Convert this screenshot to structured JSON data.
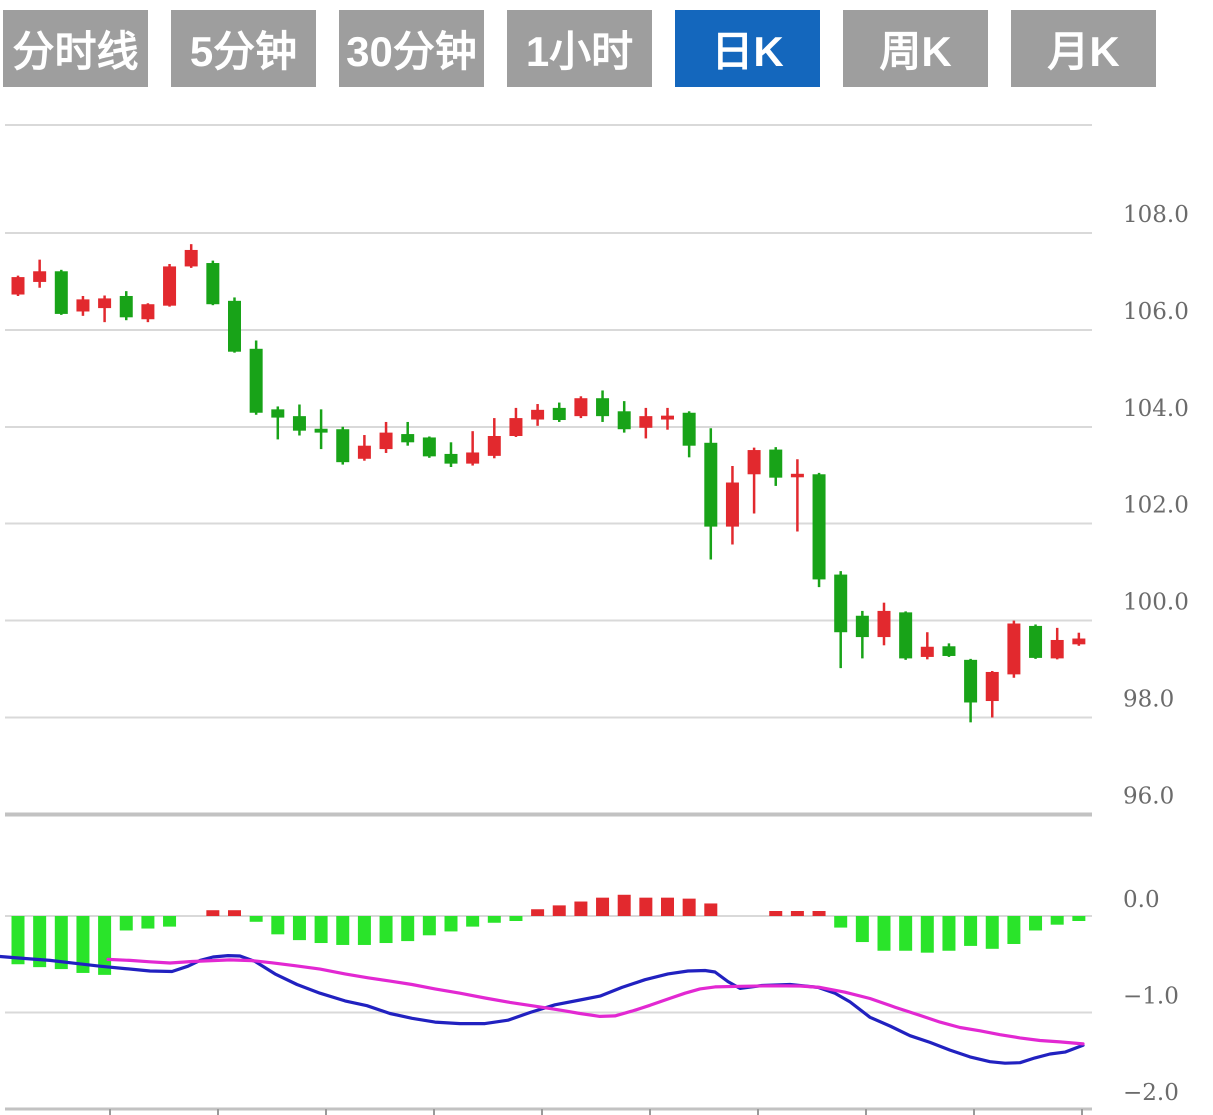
{
  "toolbar": {
    "buttons": [
      {
        "label": "分时线",
        "name": "tab-minute-line",
        "active": false
      },
      {
        "label": "5分钟",
        "name": "tab-5min",
        "active": false
      },
      {
        "label": "30分钟",
        "name": "tab-30min",
        "active": false
      },
      {
        "label": "1小时",
        "name": "tab-1hour",
        "active": false
      },
      {
        "label": "日K",
        "name": "tab-daily-k",
        "active": true
      },
      {
        "label": "周K",
        "name": "tab-weekly-k",
        "active": false
      },
      {
        "label": "月K",
        "name": "tab-monthly-k",
        "active": false
      }
    ]
  },
  "colors": {
    "button_gray": "#9e9e9e",
    "button_active_blue": "#1467bd",
    "button_text": "#ffffff",
    "candle_up_red": "#e2292e",
    "candle_down_green": "#18a318",
    "hist_green": "#2ae42a",
    "hist_red": "#e2292e",
    "dif_line_blue": "#2121c0",
    "dea_line_magenta": "#e228d2",
    "grid": "#d9d9d9",
    "grid_strong": "#c2c2c2",
    "axis_text": "#6b6b6b",
    "background": "#ffffff"
  },
  "chart_data": {
    "type": "candlestick",
    "title": "",
    "panes": [
      "price",
      "macd"
    ],
    "grid": true,
    "legend_position": "none",
    "price_axis": {
      "range": [
        95.5,
        110.2
      ],
      "ticks": [
        {
          "label": "108.0",
          "value": 108
        },
        {
          "label": "106.0",
          "value": 106
        },
        {
          "label": "104.0",
          "value": 104
        },
        {
          "label": "102.0",
          "value": 102
        },
        {
          "label": "100.0",
          "value": 100
        },
        {
          "label": "98.0",
          "value": 98
        },
        {
          "label": "96.0",
          "value": 96
        }
      ]
    },
    "macd_axis": {
      "range": [
        -2.0,
        0.3
      ],
      "ticks": [
        {
          "label": "0.0",
          "value": 0
        },
        {
          "label": "−1.0",
          "value": -1
        },
        {
          "label": "−2.0",
          "value": -2
        }
      ]
    },
    "candles_format": [
      "open",
      "high",
      "low",
      "close"
    ],
    "candles": [
      [
        106.73,
        107.12,
        106.7,
        107.09
      ],
      [
        106.99,
        107.45,
        106.87,
        107.21
      ],
      [
        107.21,
        107.24,
        106.31,
        106.33
      ],
      [
        106.38,
        106.7,
        106.29,
        106.63
      ],
      [
        106.45,
        106.71,
        106.16,
        106.65
      ],
      [
        106.7,
        106.8,
        106.2,
        106.26
      ],
      [
        106.22,
        106.55,
        106.16,
        106.53
      ],
      [
        106.5,
        107.36,
        106.48,
        107.31
      ],
      [
        107.31,
        107.77,
        107.28,
        107.65
      ],
      [
        107.38,
        107.43,
        106.51,
        106.53
      ],
      [
        106.6,
        106.67,
        105.53,
        105.55
      ],
      [
        105.61,
        105.78,
        104.25,
        104.29
      ],
      [
        104.36,
        104.42,
        103.74,
        104.19
      ],
      [
        104.22,
        104.46,
        103.82,
        103.92
      ],
      [
        103.96,
        104.36,
        103.54,
        103.88
      ],
      [
        103.95,
        104.0,
        103.22,
        103.27
      ],
      [
        103.34,
        103.83,
        103.3,
        103.61
      ],
      [
        103.54,
        104.1,
        103.46,
        103.88
      ],
      [
        103.85,
        104.1,
        103.61,
        103.68
      ],
      [
        103.78,
        103.8,
        103.36,
        103.39
      ],
      [
        103.44,
        103.68,
        103.17,
        103.24
      ],
      [
        103.24,
        103.91,
        103.2,
        103.47
      ],
      [
        103.4,
        104.18,
        103.35,
        103.81
      ],
      [
        103.81,
        104.39,
        103.79,
        104.18
      ],
      [
        104.15,
        104.47,
        104.02,
        104.35
      ],
      [
        104.39,
        104.5,
        104.1,
        104.14
      ],
      [
        104.22,
        104.63,
        104.18,
        104.59
      ],
      [
        104.59,
        104.75,
        104.1,
        104.22
      ],
      [
        104.32,
        104.53,
        103.88,
        103.95
      ],
      [
        103.98,
        104.39,
        103.76,
        104.22
      ],
      [
        104.15,
        104.39,
        103.94,
        104.23
      ],
      [
        104.29,
        104.32,
        103.37,
        103.61
      ],
      [
        103.67,
        103.97,
        101.26,
        101.94
      ],
      [
        101.94,
        103.19,
        101.57,
        102.85
      ],
      [
        103.02,
        103.57,
        102.21,
        103.52
      ],
      [
        103.53,
        103.58,
        102.78,
        102.95
      ],
      [
        102.99,
        103.33,
        101.84,
        103.03
      ],
      [
        103.02,
        103.05,
        100.69,
        100.85
      ],
      [
        100.95,
        101.02,
        99.02,
        99.76
      ],
      [
        100.1,
        100.2,
        99.22,
        99.66
      ],
      [
        99.66,
        100.37,
        99.49,
        100.2
      ],
      [
        100.17,
        100.19,
        99.19,
        99.22
      ],
      [
        99.25,
        99.76,
        99.2,
        99.46
      ],
      [
        99.47,
        99.53,
        99.25,
        99.27
      ],
      [
        99.19,
        99.21,
        97.9,
        98.31
      ],
      [
        98.34,
        98.96,
        98.0,
        98.94
      ],
      [
        98.89,
        100.0,
        98.82,
        99.94
      ],
      [
        99.89,
        99.92,
        99.21,
        99.23
      ],
      [
        99.22,
        99.85,
        99.2,
        99.6
      ],
      [
        99.51,
        99.75,
        99.48,
        99.63
      ]
    ],
    "macd_histogram": [
      -0.5,
      -0.53,
      -0.55,
      -0.59,
      -0.61,
      -0.15,
      -0.13,
      -0.11,
      0.0,
      0.06,
      0.06,
      -0.06,
      -0.19,
      -0.25,
      -0.28,
      -0.3,
      -0.3,
      -0.28,
      -0.26,
      -0.2,
      -0.16,
      -0.11,
      -0.07,
      -0.03,
      0.07,
      0.11,
      0.15,
      0.19,
      0.22,
      0.19,
      0.19,
      0.18,
      0.13,
      0.0,
      0.0,
      0.02,
      0.02,
      0.02,
      -0.12,
      -0.27,
      -0.36,
      -0.36,
      -0.38,
      -0.36,
      -0.31,
      -0.34,
      -0.29,
      -0.15,
      -0.09,
      -0.03
    ],
    "dif_line": [
      [
        0,
        -0.42
      ],
      [
        25,
        -0.44
      ],
      [
        50,
        -0.46
      ],
      [
        75,
        -0.49
      ],
      [
        100,
        -0.52
      ],
      [
        125,
        -0.545
      ],
      [
        150,
        -0.57
      ],
      [
        172,
        -0.575
      ],
      [
        188,
        -0.52
      ],
      [
        200,
        -0.46
      ],
      [
        213,
        -0.425
      ],
      [
        228,
        -0.41
      ],
      [
        240,
        -0.415
      ],
      [
        255,
        -0.47
      ],
      [
        275,
        -0.6
      ],
      [
        297,
        -0.71
      ],
      [
        320,
        -0.8
      ],
      [
        345,
        -0.88
      ],
      [
        367,
        -0.93
      ],
      [
        390,
        -1.01
      ],
      [
        412,
        -1.06
      ],
      [
        435,
        -1.1
      ],
      [
        460,
        -1.115
      ],
      [
        485,
        -1.115
      ],
      [
        508,
        -1.08
      ],
      [
        530,
        -1.0
      ],
      [
        555,
        -0.92
      ],
      [
        580,
        -0.87
      ],
      [
        600,
        -0.83
      ],
      [
        622,
        -0.74
      ],
      [
        645,
        -0.66
      ],
      [
        668,
        -0.6
      ],
      [
        688,
        -0.57
      ],
      [
        705,
        -0.565
      ],
      [
        715,
        -0.58
      ],
      [
        728,
        -0.68
      ],
      [
        740,
        -0.75
      ],
      [
        762,
        -0.72
      ],
      [
        790,
        -0.71
      ],
      [
        818,
        -0.74
      ],
      [
        835,
        -0.8
      ],
      [
        850,
        -0.89
      ],
      [
        870,
        -1.05
      ],
      [
        890,
        -1.14
      ],
      [
        910,
        -1.24
      ],
      [
        930,
        -1.31
      ],
      [
        950,
        -1.39
      ],
      [
        970,
        -1.46
      ],
      [
        990,
        -1.51
      ],
      [
        1005,
        -1.525
      ],
      [
        1020,
        -1.52
      ],
      [
        1035,
        -1.47
      ],
      [
        1050,
        -1.43
      ],
      [
        1065,
        -1.41
      ],
      [
        1083,
        -1.34
      ]
    ],
    "dea_line": [
      [
        108,
        -0.45
      ],
      [
        130,
        -0.46
      ],
      [
        150,
        -0.475
      ],
      [
        170,
        -0.487
      ],
      [
        192,
        -0.472
      ],
      [
        212,
        -0.462
      ],
      [
        230,
        -0.455
      ],
      [
        252,
        -0.462
      ],
      [
        272,
        -0.485
      ],
      [
        295,
        -0.515
      ],
      [
        320,
        -0.55
      ],
      [
        345,
        -0.6
      ],
      [
        368,
        -0.64
      ],
      [
        390,
        -0.675
      ],
      [
        412,
        -0.71
      ],
      [
        435,
        -0.755
      ],
      [
        460,
        -0.8
      ],
      [
        485,
        -0.85
      ],
      [
        510,
        -0.895
      ],
      [
        535,
        -0.935
      ],
      [
        560,
        -0.975
      ],
      [
        580,
        -1.01
      ],
      [
        600,
        -1.04
      ],
      [
        615,
        -1.035
      ],
      [
        632,
        -0.985
      ],
      [
        650,
        -0.925
      ],
      [
        668,
        -0.86
      ],
      [
        685,
        -0.8
      ],
      [
        700,
        -0.755
      ],
      [
        715,
        -0.735
      ],
      [
        740,
        -0.728
      ],
      [
        770,
        -0.723
      ],
      [
        800,
        -0.725
      ],
      [
        820,
        -0.74
      ],
      [
        845,
        -0.79
      ],
      [
        870,
        -0.855
      ],
      [
        895,
        -0.945
      ],
      [
        920,
        -1.03
      ],
      [
        940,
        -1.1
      ],
      [
        960,
        -1.155
      ],
      [
        980,
        -1.19
      ],
      [
        1000,
        -1.23
      ],
      [
        1020,
        -1.263
      ],
      [
        1040,
        -1.29
      ],
      [
        1060,
        -1.305
      ],
      [
        1083,
        -1.325
      ]
    ]
  }
}
